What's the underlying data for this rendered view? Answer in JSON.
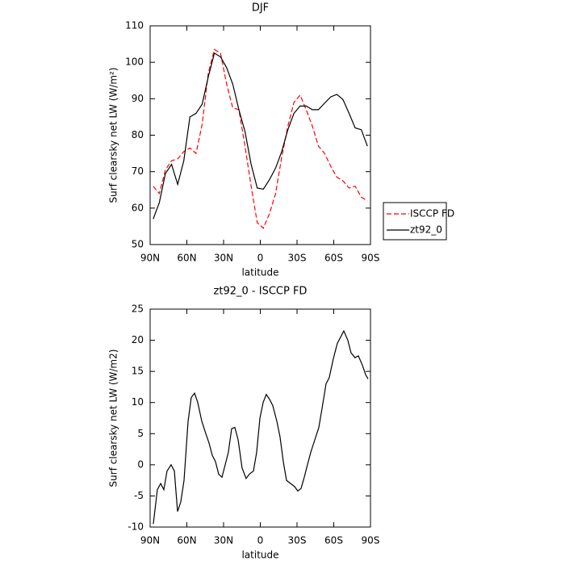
{
  "chart_data": [
    {
      "type": "line",
      "title": "DJF",
      "xlabel": "latitude",
      "ylabel": "Surf clearsky net LW (W/m²)",
      "x": [
        87.5,
        82.5,
        77.5,
        72.5,
        67.5,
        62.5,
        57.5,
        52.5,
        47.5,
        42.5,
        37.5,
        32.5,
        27.5,
        22.5,
        17.5,
        12.5,
        7.5,
        2.5,
        -2.5,
        -7.5,
        -12.5,
        -17.5,
        -22.5,
        -27.5,
        -32.5,
        -37.5,
        -42.5,
        -47.5,
        -52.5,
        -57.5,
        -62.5,
        -67.5,
        -72.5,
        -77.5,
        -82.5,
        -87.5
      ],
      "series": [
        {
          "name": "ISCCP FD",
          "color": "#ff0000",
          "dashed": true,
          "values": [
            66,
            64,
            70.5,
            73,
            73.5,
            75.5,
            76.5,
            75,
            83,
            97,
            103.5,
            102.5,
            94,
            87.5,
            87,
            77,
            66,
            56,
            54.5,
            58.5,
            64,
            74,
            82.5,
            89,
            91,
            87,
            82.5,
            77,
            75,
            71.5,
            68.5,
            67.5,
            65.5,
            66,
            63,
            62
          ]
        },
        {
          "name": "zt92_0",
          "color": "#000000",
          "dashed": false,
          "values": [
            57,
            61.5,
            69.5,
            72,
            66.5,
            73,
            85,
            86,
            88.5,
            96,
            102.5,
            101.5,
            98.5,
            94,
            87,
            81,
            72,
            65.5,
            65.2,
            67.8,
            71,
            75.5,
            81.5,
            86,
            88,
            88,
            87,
            87,
            88.8,
            90.5,
            91.2,
            89.8,
            86,
            82,
            81.5,
            77
          ]
        }
      ],
      "xlim": [
        90,
        -90
      ],
      "xticks": [
        {
          "value": 90,
          "label": "90N"
        },
        {
          "value": 60,
          "label": "60N"
        },
        {
          "value": 30,
          "label": "30N"
        },
        0,
        {
          "value": -30,
          "label": "30S"
        },
        {
          "value": -60,
          "label": "60S"
        },
        {
          "value": -90,
          "label": "90S"
        }
      ],
      "ylim": [
        50,
        110
      ],
      "yticks": [
        50,
        60,
        70,
        80,
        90,
        100,
        110
      ],
      "legend": "right"
    },
    {
      "type": "line",
      "title": "zt92_0 - ISCCP FD",
      "xlabel": "latitude",
      "ylabel": "Surf clearsky net LW (W/m2)",
      "x": [
        87.4,
        84.1,
        81.4,
        78.8,
        76.2,
        72.9,
        70.2,
        67.6,
        65,
        62.3,
        59,
        56.4,
        53.7,
        51.1,
        47.8,
        44.5,
        41.9,
        39.2,
        36.6,
        34,
        31.3,
        28.7,
        26.1,
        23.4,
        20.8,
        18.1,
        14.9,
        11.6,
        8.9,
        5.6,
        3,
        0.3,
        -2.3,
        -4.9,
        -7.6,
        -10.2,
        -13.5,
        -16.1,
        -18.8,
        -21.4,
        -24.7,
        -28,
        -30.6,
        -33.3,
        -35.9,
        -38.5,
        -41.2,
        -44.5,
        -47.8,
        -50.4,
        -53.7,
        -56.3,
        -59.6,
        -62.9,
        -65.6,
        -68.2,
        -71.5,
        -74.1,
        -77.4,
        -80.1,
        -83.4,
        -86,
        -88
      ],
      "series": [
        {
          "name": "zt92_0 - ISCCP FD",
          "color": "#000000",
          "dashed": false,
          "values": [
            -9.5,
            -4,
            -3,
            -4,
            -1,
            0,
            -1,
            -7.5,
            -6,
            -2.5,
            7,
            10.8,
            11.5,
            10,
            7,
            5,
            3.5,
            1.5,
            0.5,
            -1.5,
            -2,
            0,
            2,
            5.8,
            6,
            4,
            -0.5,
            -2.2,
            -1.5,
            -1,
            2,
            7.5,
            10,
            11.3,
            10.5,
            9.5,
            7,
            4.5,
            0.5,
            -2.5,
            -3,
            -3.5,
            -4.2,
            -3.8,
            -2,
            0,
            2,
            4,
            6,
            9,
            13,
            14,
            17,
            19.5,
            20.5,
            21.5,
            20,
            18,
            17.2,
            17.5,
            16,
            14.5,
            13.8
          ]
        }
      ],
      "xlim": [
        90,
        -90
      ],
      "xticks": [
        {
          "value": 90,
          "label": "90N"
        },
        {
          "value": 60,
          "label": "60N"
        },
        {
          "value": 30,
          "label": "30N"
        },
        0,
        {
          "value": -30,
          "label": "30S"
        },
        {
          "value": -60,
          "label": "60S"
        },
        {
          "value": -90,
          "label": "90S"
        }
      ],
      "ylim": [
        -10,
        25
      ],
      "yticks": [
        -10,
        -5,
        0,
        5,
        10,
        15,
        20,
        25
      ]
    }
  ]
}
